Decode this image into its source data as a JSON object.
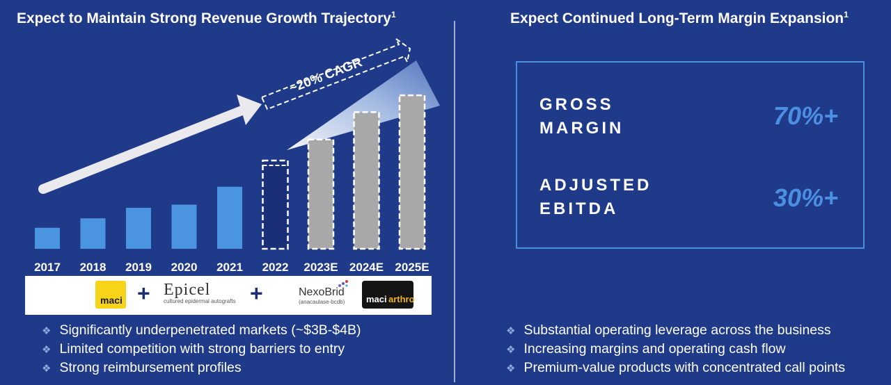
{
  "left_title": "Expect to Maintain Strong Revenue Growth Trajectory",
  "left_title_sup": "1",
  "right_title": "Expect Continued Long-Term Margin Expansion",
  "right_title_sup": "1",
  "chart_data": {
    "type": "bar",
    "categories": [
      "2017",
      "2018",
      "2019",
      "2020",
      "2021",
      "2022",
      "2023E",
      "2024E",
      "2025E"
    ],
    "values": [
      1.0,
      1.45,
      1.95,
      2.1,
      2.95,
      4.2,
      5.2,
      6.5,
      7.3
    ],
    "ylim": [
      0,
      8
    ],
    "annotation": "~20% CAGR",
    "colors": {
      "actual": "#4a94e0",
      "current": "#1a2f78",
      "estimate": "#a8a8a8"
    }
  },
  "logos": {
    "maci": "maci",
    "plus": "+",
    "epicel": "Epicel",
    "epicel_sub": "cultured epidermal autografts",
    "nexobrid": "NexoBrid",
    "nexobrid_sub": "(anacaulase-bcdb)",
    "maci_arthro_a": "maci",
    "maci_arthro_b": "arthro"
  },
  "left_bullets": [
    "Significantly underpenetrated markets (~$3B-$4B)",
    "Limited competition with strong barriers to entry",
    "Strong reimbursement profiles"
  ],
  "margin_box": {
    "gross_label_1": "GROSS",
    "gross_label_2": "MARGIN",
    "gross_value": "70%+",
    "ebitda_label_1": "ADJUSTED",
    "ebitda_label_2": "EBITDA",
    "ebitda_value": "30%+"
  },
  "right_bullets": [
    "Substantial operating leverage across the business",
    "Increasing margins and operating cash flow",
    "Premium-value products with concentrated call points"
  ],
  "bullet_glyph": "❖"
}
